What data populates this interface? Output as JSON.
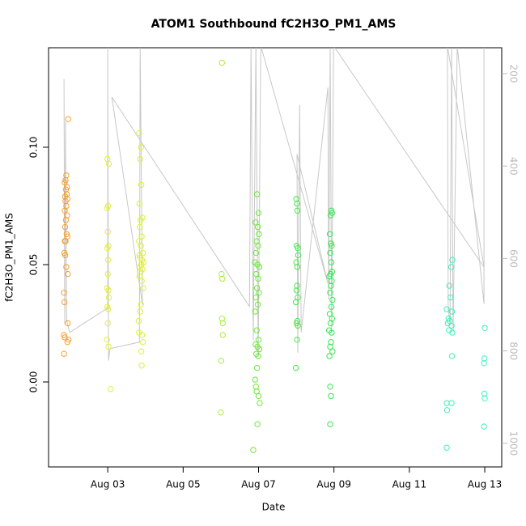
{
  "chart_data": {
    "type": "scatter",
    "title": "ATOM1 Southbound fC2H3O_PM1_AMS",
    "x_label": "Date",
    "y_label": "fC2H3O_PM1_AMS",
    "xlim": [
      1.43,
      13.45
    ],
    "xticks": [
      {
        "value": 3,
        "label": "Aug 03"
      },
      {
        "value": 5,
        "label": "Aug 05"
      },
      {
        "value": 7,
        "label": "Aug 07"
      },
      {
        "value": 9,
        "label": "Aug 09"
      },
      {
        "value": 11,
        "label": "Aug 11"
      },
      {
        "value": 13,
        "label": "Aug 13"
      }
    ],
    "ylim": [
      -0.0362,
      0.1424
    ],
    "yticks": [
      {
        "value": 0,
        "label": "0.00"
      },
      {
        "value": 0.05,
        "label": "0.05"
      },
      {
        "value": 0.1,
        "label": "0.10"
      }
    ],
    "y2lim": [
      1051,
      144
    ],
    "y2ticks": [
      200,
      400,
      600,
      800,
      1000
    ],
    "y2_color": "#bbbbbb",
    "series": [
      {
        "type": "line",
        "axis": "y2",
        "color": "#c8c8c8",
        "x": [
          1.84,
          1.86,
          1.88,
          1.91,
          1.99,
          3.0,
          3.0,
          3.02,
          3.06,
          3.84,
          3.86,
          3.92,
          3.11,
          6.76,
          6.8,
          6.86,
          6.93,
          6.99,
          7.06,
          8.84,
          8.02,
          8.04,
          8.09,
          8.13,
          8.84,
          8.86,
          8.9,
          8.94,
          8.99,
          12.98,
          12.01,
          12.03,
          12.08,
          12.12,
          12.16,
          12.27,
          12.98,
          12.98
        ],
        "values": [
          212,
          742,
          304,
          733,
          760,
          707,
          140,
          821,
          795,
          781,
          140,
          700,
          251,
          704,
          140,
          777,
          140,
          812,
          140,
          654,
          374,
          804,
          268,
          760,
          230,
          689,
          140,
          760,
          140,
          619,
          140,
          707,
          742,
          140,
          760,
          140,
          698,
          140
        ]
      },
      {
        "color": "#f5a030",
        "x": [
          1.95,
          1.9,
          1.88,
          1.86,
          1.92,
          1.89,
          1.91,
          1.87,
          1.93,
          1.88,
          1.9,
          1.86,
          1.92,
          1.89,
          1.87,
          1.91,
          1.93,
          1.86,
          1.88,
          1.85,
          1.87,
          1.9,
          1.94,
          1.84,
          1.85,
          1.94,
          1.84,
          1.86,
          1.96,
          1.93,
          1.84
        ],
        "values": [
          0.112,
          0.088,
          0.086,
          0.085,
          0.083,
          0.082,
          0.08,
          0.079,
          0.078,
          0.077,
          0.075,
          0.073,
          0.071,
          0.069,
          0.066,
          0.063,
          0.062,
          0.06,
          0.06,
          0.055,
          0.054,
          0.049,
          0.046,
          0.038,
          0.034,
          0.025,
          0.02,
          0.019,
          0.018,
          0.017,
          0.012
        ]
      },
      {
        "color": "#e3ef3a",
        "x": [
          2.99,
          3.03,
          3.01,
          2.98,
          3.0,
          3.02,
          2.99,
          3.01,
          3.0,
          2.98,
          3.02,
          3.03,
          2.99,
          3.01,
          3.0,
          2.98,
          3.02,
          3.08
        ],
        "values": [
          0.095,
          0.093,
          0.075,
          0.074,
          0.064,
          0.058,
          0.057,
          0.052,
          0.046,
          0.04,
          0.039,
          0.036,
          0.032,
          0.031,
          0.025,
          0.018,
          0.015,
          -0.003
        ]
      },
      {
        "color": "#dcf03a",
        "x": [
          3.83,
          3.88,
          3.86,
          3.89,
          3.84,
          3.92,
          3.87,
          3.85,
          3.9,
          3.83,
          3.88,
          3.93,
          3.84,
          3.86,
          3.91,
          3.95,
          3.89,
          3.85,
          3.92,
          3.87,
          3.84,
          3.9,
          3.94,
          3.88,
          3.86,
          3.82,
          3.83,
          3.91,
          3.93,
          3.89,
          3.9
        ],
        "values": [
          0.106,
          0.1,
          0.095,
          0.084,
          0.076,
          0.07,
          0.069,
          0.066,
          0.062,
          0.06,
          0.058,
          0.055,
          0.054,
          0.053,
          0.052,
          0.051,
          0.05,
          0.049,
          0.048,
          0.047,
          0.045,
          0.043,
          0.04,
          0.033,
          0.03,
          0.026,
          0.021,
          0.02,
          0.017,
          0.013,
          0.007
        ]
      },
      {
        "color": "#a8f03c",
        "x": [
          6.03,
          6.02,
          6.04,
          6.03,
          6.05,
          6.05,
          6.01,
          6.0
        ],
        "values": [
          0.136,
          0.046,
          0.044,
          0.027,
          0.025,
          0.02,
          0.009,
          -0.013
        ]
      },
      {
        "color": "#6ee63c",
        "x": [
          6.96,
          7.0,
          6.92,
          6.98,
          7.01,
          6.95,
          6.99,
          6.93,
          6.9,
          6.97,
          7.02,
          6.94,
          6.99,
          6.96,
          7.01,
          6.93,
          6.98,
          6.91,
          6.95,
          7.0,
          6.92,
          6.97,
          7.02,
          6.94,
          6.99,
          6.96,
          6.91,
          6.93,
          6.95,
          7.0,
          7.03,
          6.97,
          6.86
        ],
        "values": [
          0.08,
          0.072,
          0.068,
          0.066,
          0.063,
          0.06,
          0.058,
          0.055,
          0.051,
          0.05,
          0.049,
          0.046,
          0.044,
          0.04,
          0.038,
          0.036,
          0.033,
          0.03,
          0.022,
          0.018,
          0.016,
          0.015,
          0.014,
          0.012,
          0.011,
          0.006,
          0.001,
          -0.002,
          -0.004,
          -0.006,
          -0.009,
          -0.018,
          -0.029
        ]
      },
      {
        "color": "#45e648",
        "x": [
          8.0,
          8.02,
          8.03,
          8.01,
          8.04,
          8.05,
          8.0,
          8.03,
          8.02,
          8.01,
          8.04,
          7.99,
          8.03,
          8.01,
          8.04,
          8.02,
          7.99
        ],
        "values": [
          0.078,
          0.076,
          0.073,
          0.058,
          0.057,
          0.054,
          0.051,
          0.049,
          0.041,
          0.039,
          0.036,
          0.034,
          0.026,
          0.025,
          0.024,
          0.018,
          0.006
        ]
      },
      {
        "color": "#33e650",
        "x": [
          8.93,
          8.95,
          8.91,
          8.89,
          8.92,
          8.94,
          8.9,
          8.93,
          8.95,
          8.91,
          8.88,
          8.94,
          8.92,
          8.9,
          8.96,
          8.93,
          8.89,
          8.95,
          8.91,
          8.87,
          8.94,
          8.92,
          8.9,
          8.96,
          8.88,
          8.9,
          8.92,
          8.9
        ],
        "values": [
          0.073,
          0.072,
          0.071,
          0.063,
          0.059,
          0.058,
          0.055,
          0.051,
          0.047,
          0.046,
          0.045,
          0.043,
          0.041,
          0.038,
          0.035,
          0.032,
          0.029,
          0.027,
          0.025,
          0.022,
          0.021,
          0.017,
          0.015,
          0.013,
          0.011,
          -0.002,
          -0.006,
          -0.018
        ]
      },
      {
        "color": "#40f0b8",
        "x": [
          12.14,
          12.11,
          12.06,
          12.09,
          11.99,
          12.13,
          12.04,
          12.07,
          12.02,
          12.12,
          12.05,
          12.14,
          12.13,
          11.99,
          12.12,
          12.0,
          11.99
        ],
        "values": [
          0.052,
          0.049,
          0.041,
          0.036,
          0.031,
          0.03,
          0.027,
          0.026,
          0.025,
          0.024,
          0.022,
          0.021,
          0.011,
          -0.009,
          -0.009,
          -0.012,
          -0.028
        ]
      },
      {
        "color": "#40f0c0",
        "x": [
          13.0,
          12.99,
          12.98,
          12.99,
          13.0,
          12.98
        ],
        "values": [
          0.023,
          0.01,
          0.008,
          -0.005,
          -0.007,
          -0.019
        ]
      }
    ]
  }
}
